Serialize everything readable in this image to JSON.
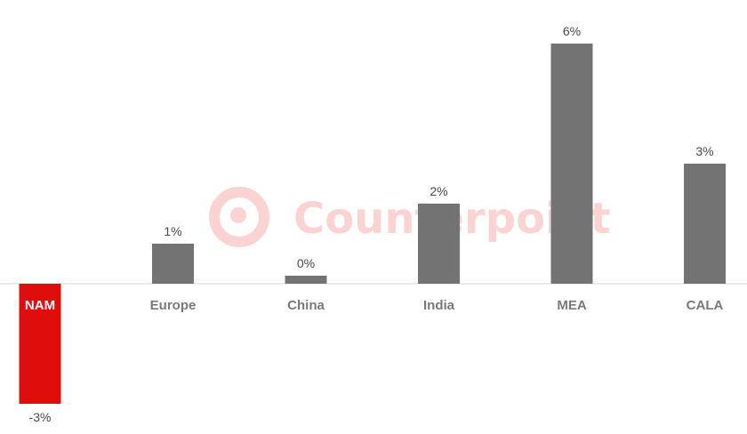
{
  "watermark": {
    "text": "Counterpoint",
    "color": "#fbd3d3"
  },
  "colors": {
    "bar_default": "#737373",
    "bar_highlight": "#e00d0d",
    "label": "#4a4a4a",
    "category_label": "#7a7a7a",
    "axis": "#e3e3e3"
  },
  "chart_data": {
    "type": "bar",
    "title": "",
    "xlabel": "",
    "ylabel": "",
    "categories": [
      "NAM",
      "Europe",
      "China",
      "India",
      "MEA",
      "CALA"
    ],
    "values": [
      -3,
      1,
      0.2,
      2,
      6,
      3
    ],
    "data_labels": [
      "-3%",
      "1%",
      "0%",
      "2%",
      "6%",
      "3%"
    ],
    "highlight": [
      "NAM"
    ],
    "ylim": [
      -3,
      6
    ],
    "grid": false,
    "legend": "none"
  }
}
